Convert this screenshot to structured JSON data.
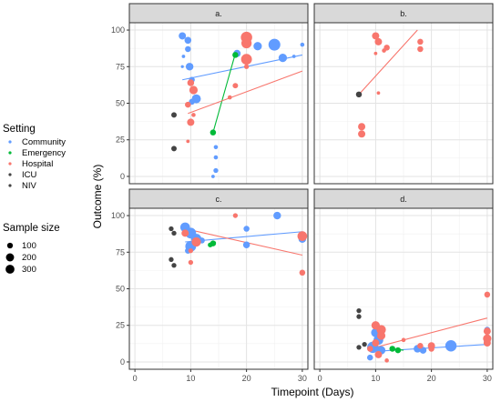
{
  "chart_data": {
    "type": "scatter",
    "xlabel": "Timepoint (Days)",
    "ylabel": "Outcome (%)",
    "xlim": [
      -1,
      31
    ],
    "ylim": [
      -5,
      105
    ],
    "x_ticks": [
      "0",
      "10",
      "20",
      "30"
    ],
    "y_ticks": [
      "0",
      "25",
      "50",
      "75",
      "100"
    ],
    "grid": true,
    "legend_placement": "left",
    "colors": {
      "Community": "#619cff",
      "Emergency": "#00ba38",
      "Hospital": "#f8766d",
      "ICU": "#444444",
      "NIV": "#444444"
    },
    "legend_setting": {
      "title": "Setting",
      "entries": [
        {
          "label": "Community",
          "color": "#619cff"
        },
        {
          "label": "Emergency",
          "color": "#00ba38"
        },
        {
          "label": "Hospital",
          "color": "#f8766d"
        },
        {
          "label": "ICU",
          "color": "#444444"
        },
        {
          "label": "NIV",
          "color": "#444444"
        }
      ]
    },
    "legend_size": {
      "title": "Sample size",
      "entries": [
        {
          "label": "100",
          "value": 100
        },
        {
          "label": "200",
          "value": 200
        },
        {
          "label": "300",
          "value": 300
        }
      ]
    },
    "panels": [
      {
        "label": "a.",
        "points": [
          {
            "x": 8.5,
            "y": 96,
            "s": 90,
            "g": "Community"
          },
          {
            "x": 9.5,
            "y": 93,
            "s": 80,
            "g": "Community"
          },
          {
            "x": 9.5,
            "y": 87,
            "s": 60,
            "g": "Community"
          },
          {
            "x": 8.7,
            "y": 82,
            "s": 20,
            "g": "Community"
          },
          {
            "x": 8.5,
            "y": 75,
            "s": 15,
            "g": "Community"
          },
          {
            "x": 9.8,
            "y": 75,
            "s": 100,
            "g": "Community"
          },
          {
            "x": 10.2,
            "y": 66,
            "s": 60,
            "g": "Community"
          },
          {
            "x": 11,
            "y": 53,
            "s": 140,
            "g": "Community"
          },
          {
            "x": 10.2,
            "y": 51,
            "s": 60,
            "g": "Community"
          },
          {
            "x": 14.5,
            "y": 20,
            "s": 30,
            "g": "Community"
          },
          {
            "x": 14.5,
            "y": 13,
            "s": 30,
            "g": "Community"
          },
          {
            "x": 14.5,
            "y": 4,
            "s": 40,
            "g": "Community"
          },
          {
            "x": 14,
            "y": 0,
            "s": 20,
            "g": "Community"
          },
          {
            "x": 18.3,
            "y": 84,
            "s": 90,
            "g": "Community"
          },
          {
            "x": 25,
            "y": 90,
            "s": 250,
            "g": "Community"
          },
          {
            "x": 22,
            "y": 89,
            "s": 120,
            "g": "Community"
          },
          {
            "x": 26.5,
            "y": 81,
            "s": 120,
            "g": "Community"
          },
          {
            "x": 28.5,
            "y": 82,
            "s": 20,
            "g": "Community"
          },
          {
            "x": 30,
            "y": 90,
            "s": 30,
            "g": "Community"
          },
          {
            "x": 20,
            "y": 95,
            "s": 220,
            "g": "Hospital"
          },
          {
            "x": 20,
            "y": 91,
            "s": 180,
            "g": "Hospital"
          },
          {
            "x": 20,
            "y": 80,
            "s": 200,
            "g": "Hospital"
          },
          {
            "x": 20,
            "y": 75,
            "s": 40,
            "g": "Hospital"
          },
          {
            "x": 18,
            "y": 62,
            "s": 50,
            "g": "Hospital"
          },
          {
            "x": 17,
            "y": 54,
            "s": 30,
            "g": "Hospital"
          },
          {
            "x": 10,
            "y": 64,
            "s": 80,
            "g": "Hospital"
          },
          {
            "x": 10.5,
            "y": 59,
            "s": 120,
            "g": "Hospital"
          },
          {
            "x": 9.5,
            "y": 49,
            "s": 60,
            "g": "Hospital"
          },
          {
            "x": 10,
            "y": 37,
            "s": 90,
            "g": "Hospital"
          },
          {
            "x": 10.5,
            "y": 42,
            "s": 30,
            "g": "Hospital"
          },
          {
            "x": 9.5,
            "y": 24,
            "s": 20,
            "g": "Hospital"
          },
          {
            "x": 14,
            "y": 30,
            "s": 60,
            "g": "Emergency"
          },
          {
            "x": 18,
            "y": 83,
            "s": 60,
            "g": "Emergency"
          },
          {
            "x": 7,
            "y": 42,
            "s": 50,
            "g": "ICU"
          },
          {
            "x": 7,
            "y": 19,
            "s": 50,
            "g": "ICU"
          }
        ],
        "trends": [
          {
            "g": "Community",
            "x": [
              8.5,
              30
            ],
            "y": [
              66,
              83
            ]
          },
          {
            "g": "Emergency",
            "x": [
              14,
              18
            ],
            "y": [
              30,
              84
            ]
          },
          {
            "g": "Hospital",
            "x": [
              9.5,
              30
            ],
            "y": [
              43,
              72
            ]
          }
        ]
      },
      {
        "label": "b.",
        "points": [
          {
            "x": 10,
            "y": 96,
            "s": 90,
            "g": "Hospital"
          },
          {
            "x": 10.5,
            "y": 92,
            "s": 90,
            "g": "Hospital"
          },
          {
            "x": 12,
            "y": 88,
            "s": 60,
            "g": "Hospital"
          },
          {
            "x": 11.5,
            "y": 86,
            "s": 30,
            "g": "Hospital"
          },
          {
            "x": 18,
            "y": 92,
            "s": 60,
            "g": "Hospital"
          },
          {
            "x": 18,
            "y": 87,
            "s": 60,
            "g": "Hospital"
          },
          {
            "x": 10,
            "y": 84,
            "s": 20,
            "g": "Hospital"
          },
          {
            "x": 10.5,
            "y": 57,
            "s": 20,
            "g": "Hospital"
          },
          {
            "x": 7.5,
            "y": 34,
            "s": 90,
            "g": "Hospital"
          },
          {
            "x": 7.5,
            "y": 29,
            "s": 90,
            "g": "Hospital"
          },
          {
            "x": 7,
            "y": 56,
            "s": 60,
            "g": "ICU"
          }
        ],
        "trends": [
          {
            "g": "Hospital",
            "x": [
              7,
              17.5
            ],
            "y": [
              56,
              100
            ]
          }
        ]
      },
      {
        "label": "c.",
        "points": [
          {
            "x": 9,
            "y": 92,
            "s": 160,
            "g": "Community"
          },
          {
            "x": 10,
            "y": 88,
            "s": 200,
            "g": "Community"
          },
          {
            "x": 11,
            "y": 84,
            "s": 180,
            "g": "Community"
          },
          {
            "x": 10,
            "y": 79,
            "s": 200,
            "g": "Community"
          },
          {
            "x": 9.5,
            "y": 76,
            "s": 60,
            "g": "Community"
          },
          {
            "x": 12,
            "y": 83,
            "s": 60,
            "g": "Community"
          },
          {
            "x": 20,
            "y": 91,
            "s": 60,
            "g": "Community"
          },
          {
            "x": 20,
            "y": 80,
            "s": 80,
            "g": "Community"
          },
          {
            "x": 25.5,
            "y": 100,
            "s": 100,
            "g": "Community"
          },
          {
            "x": 30,
            "y": 84,
            "s": 100,
            "g": "Community"
          },
          {
            "x": 9,
            "y": 88,
            "s": 90,
            "g": "Hospital"
          },
          {
            "x": 11,
            "y": 82,
            "s": 150,
            "g": "Hospital"
          },
          {
            "x": 10,
            "y": 76,
            "s": 40,
            "g": "Hospital"
          },
          {
            "x": 10,
            "y": 68,
            "s": 40,
            "g": "Hospital"
          },
          {
            "x": 18,
            "y": 100,
            "s": 40,
            "g": "Hospital"
          },
          {
            "x": 30,
            "y": 86,
            "s": 160,
            "g": "Hospital"
          },
          {
            "x": 30,
            "y": 61,
            "s": 60,
            "g": "Hospital"
          },
          {
            "x": 14,
            "y": 81,
            "s": 60,
            "g": "Emergency"
          },
          {
            "x": 13.5,
            "y": 80,
            "s": 40,
            "g": "Emergency"
          },
          {
            "x": 6.5,
            "y": 91,
            "s": 40,
            "g": "ICU"
          },
          {
            "x": 7,
            "y": 88,
            "s": 40,
            "g": "ICU"
          },
          {
            "x": 6.5,
            "y": 70,
            "s": 40,
            "g": "ICU"
          },
          {
            "x": 7,
            "y": 66,
            "s": 40,
            "g": "ICU"
          }
        ],
        "trends": [
          {
            "g": "Community",
            "x": [
              9,
              30
            ],
            "y": [
              82,
              89
            ]
          },
          {
            "g": "Hospital",
            "x": [
              9,
              30
            ],
            "y": [
              91,
              73
            ]
          },
          {
            "g": "Emergency",
            "x": [
              13.5,
              14.5
            ],
            "y": [
              80,
              82
            ]
          }
        ]
      },
      {
        "label": "d.",
        "points": [
          {
            "x": 10,
            "y": 20,
            "s": 140,
            "g": "Community"
          },
          {
            "x": 10.5,
            "y": 15,
            "s": 160,
            "g": "Community"
          },
          {
            "x": 9.5,
            "y": 10,
            "s": 220,
            "g": "Community"
          },
          {
            "x": 11,
            "y": 8,
            "s": 120,
            "g": "Community"
          },
          {
            "x": 9,
            "y": 3,
            "s": 60,
            "g": "Community"
          },
          {
            "x": 17.5,
            "y": 9,
            "s": 100,
            "g": "Community"
          },
          {
            "x": 18.5,
            "y": 8,
            "s": 80,
            "g": "Community"
          },
          {
            "x": 23.5,
            "y": 11,
            "s": 220,
            "g": "Community"
          },
          {
            "x": 30,
            "y": 22,
            "s": 60,
            "g": "Community"
          },
          {
            "x": 30,
            "y": 14,
            "s": 80,
            "g": "Community"
          },
          {
            "x": 10,
            "y": 25,
            "s": 120,
            "g": "Hospital"
          },
          {
            "x": 11,
            "y": 22,
            "s": 150,
            "g": "Hospital"
          },
          {
            "x": 11,
            "y": 18,
            "s": 120,
            "g": "Hospital"
          },
          {
            "x": 10,
            "y": 13,
            "s": 90,
            "g": "Hospital"
          },
          {
            "x": 9,
            "y": 9,
            "s": 60,
            "g": "Hospital"
          },
          {
            "x": 10.5,
            "y": 5,
            "s": 90,
            "g": "Hospital"
          },
          {
            "x": 12,
            "y": 1,
            "s": 30,
            "g": "Hospital"
          },
          {
            "x": 18,
            "y": 11,
            "s": 60,
            "g": "Hospital"
          },
          {
            "x": 20,
            "y": 11,
            "s": 90,
            "g": "Hospital"
          },
          {
            "x": 20,
            "y": 9,
            "s": 60,
            "g": "Hospital"
          },
          {
            "x": 15,
            "y": 15,
            "s": 30,
            "g": "Hospital"
          },
          {
            "x": 30,
            "y": 46,
            "s": 60,
            "g": "Hospital"
          },
          {
            "x": 30,
            "y": 21,
            "s": 90,
            "g": "Hospital"
          },
          {
            "x": 30,
            "y": 16,
            "s": 120,
            "g": "Hospital"
          },
          {
            "x": 30,
            "y": 13,
            "s": 90,
            "g": "Hospital"
          },
          {
            "x": 13,
            "y": 9,
            "s": 60,
            "g": "Emergency"
          },
          {
            "x": 14,
            "y": 8,
            "s": 60,
            "g": "Emergency"
          },
          {
            "x": 7,
            "y": 35,
            "s": 40,
            "g": "ICU"
          },
          {
            "x": 7,
            "y": 31,
            "s": 40,
            "g": "ICU"
          },
          {
            "x": 7,
            "y": 10,
            "s": 40,
            "g": "ICU"
          },
          {
            "x": 8,
            "y": 12,
            "s": 40,
            "g": "ICU"
          }
        ],
        "trends": [
          {
            "g": "Community",
            "x": [
              9,
              30
            ],
            "y": [
              7,
              12
            ]
          },
          {
            "g": "Hospital",
            "x": [
              9,
              30
            ],
            "y": [
              9,
              30
            ]
          },
          {
            "g": "Emergency",
            "x": [
              12.5,
              15
            ],
            "y": [
              9,
              8
            ]
          }
        ]
      }
    ]
  }
}
